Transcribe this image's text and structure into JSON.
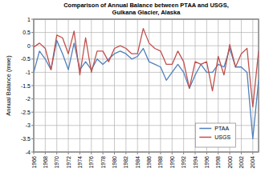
{
  "chart_data": {
    "type": "line",
    "title": "Comparison of Annual Balance  between PTAA  and USGS,",
    "subtitle": "Gulkana Glacier, Alaska",
    "y_label": "Annual Balance (mwe)",
    "x": [
      1966,
      1967,
      1968,
      1969,
      1970,
      1971,
      1972,
      1973,
      1974,
      1975,
      1976,
      1977,
      1978,
      1979,
      1980,
      1981,
      1982,
      1983,
      1984,
      1985,
      1986,
      1987,
      1988,
      1989,
      1990,
      1991,
      1992,
      1993,
      1994,
      1995,
      1996,
      1997,
      1998,
      1999,
      2000,
      2001,
      2002,
      2003,
      2004,
      2005
    ],
    "series": [
      {
        "name": "PTAA",
        "color": "#4f81bd",
        "values": [
          -1.0,
          -0.2,
          -0.5,
          -0.9,
          0.2,
          -0.3,
          -0.9,
          0.1,
          -0.9,
          -0.6,
          -0.9,
          -0.5,
          -0.7,
          -0.5,
          -0.3,
          -0.2,
          -0.3,
          -0.5,
          -0.4,
          -0.1,
          -0.6,
          -0.7,
          -0.8,
          -1.3,
          -1.0,
          -0.7,
          -1.0,
          -1.6,
          -1.1,
          -0.7,
          -1.0,
          -1.0,
          -0.7,
          -0.8,
          -0.1,
          -0.8,
          -0.8,
          -1.0,
          -3.5,
          -1.3
        ]
      },
      {
        "name": "USGS",
        "color": "#c0504d",
        "values": [
          -0.05,
          0.1,
          -0.1,
          -0.9,
          0.4,
          0.3,
          -0.3,
          0.55,
          -1.1,
          0.3,
          -1.0,
          -0.2,
          -0.2,
          -0.6,
          -0.1,
          0.0,
          -0.1,
          -0.3,
          -0.3,
          0.65,
          0.1,
          -0.1,
          -0.2,
          -0.7,
          -0.7,
          -0.2,
          -0.6,
          -1.6,
          -0.6,
          -0.7,
          -0.6,
          -1.7,
          -0.4,
          -1.1,
          0.05,
          -0.8,
          -0.3,
          -0.1,
          -2.3,
          -0.2
        ]
      }
    ],
    "xlim": [
      1966,
      2005
    ],
    "xticks": [
      1966,
      1968,
      1970,
      1972,
      1974,
      1976,
      1978,
      1980,
      1982,
      1984,
      1986,
      1988,
      1990,
      1992,
      1994,
      1996,
      1998,
      2000,
      2002,
      2004
    ],
    "ylim": [
      -4,
      1
    ],
    "yticks": [
      1,
      0.5,
      0,
      -0.5,
      -1,
      -1.5,
      -2,
      -2.5,
      -3,
      -3.5,
      -4
    ],
    "grid": true,
    "legend": "lower right"
  }
}
